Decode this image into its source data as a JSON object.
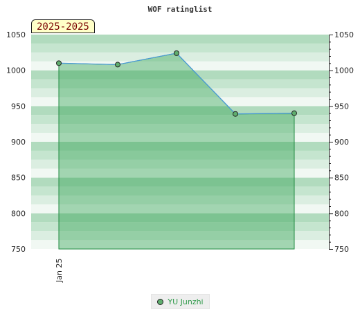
{
  "chart_data": {
    "type": "area",
    "title": "WOF ratinglist",
    "period": "2025-2025",
    "x_tick_labels": [
      "Jan 25"
    ],
    "ylim": [
      750,
      1050
    ],
    "y_ticks": [
      750,
      800,
      850,
      900,
      950,
      1000,
      1050
    ],
    "series": [
      {
        "name": "YU Junzhi",
        "values": [
          1010,
          1008,
          1024,
          939,
          940
        ]
      }
    ],
    "legend_position": "bottom-center",
    "colors": {
      "line": "#4a9ad6",
      "fill": "#2e9f4d",
      "marker": "#5fae6e",
      "legend_text": "#2f9a4a"
    }
  }
}
